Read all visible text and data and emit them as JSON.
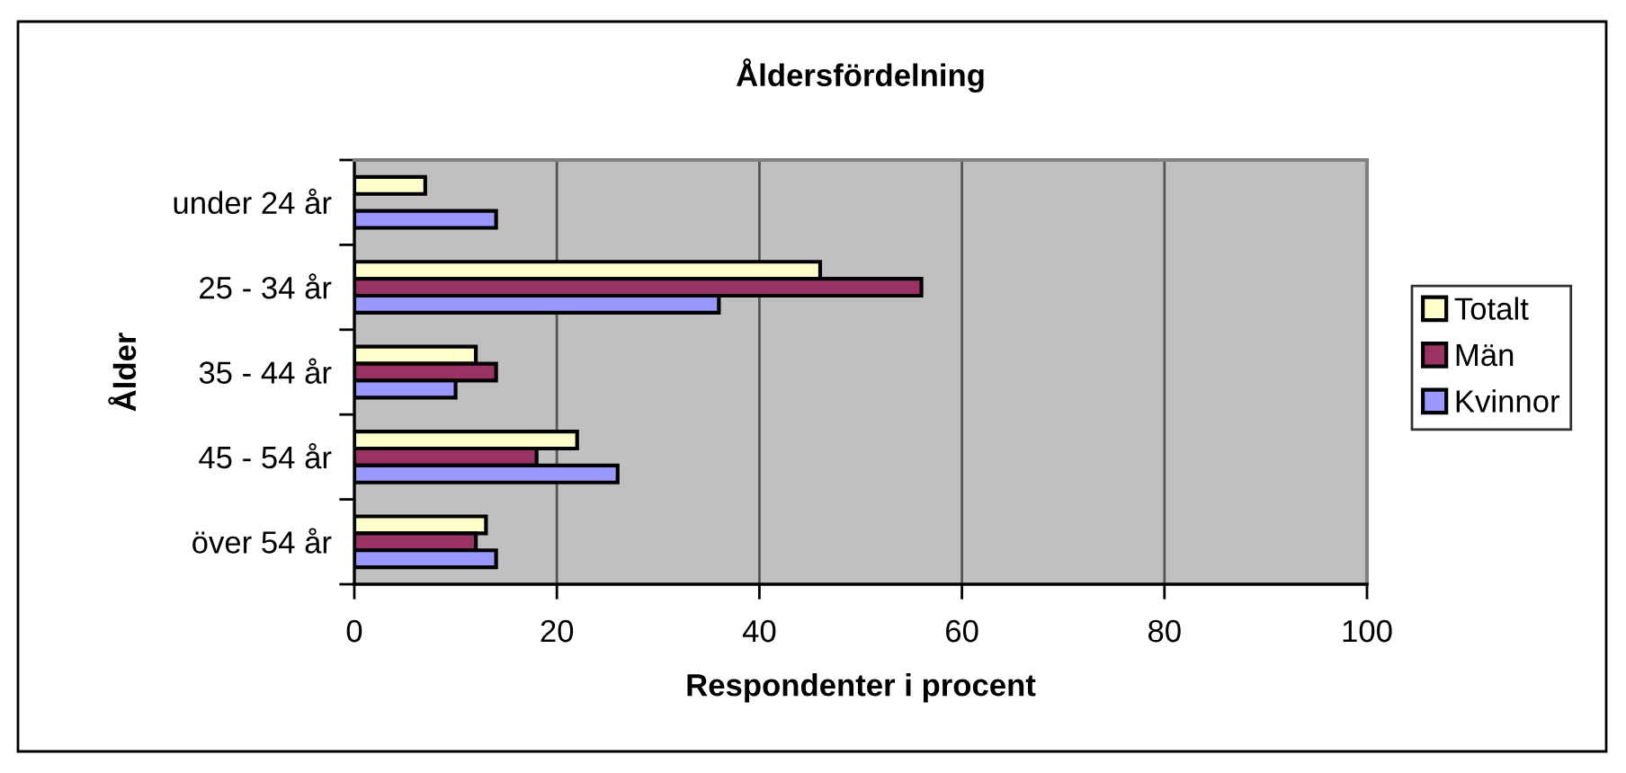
{
  "chart_data": {
    "type": "bar",
    "orientation": "horizontal",
    "title": "Åldersfördelning",
    "xlabel": "Respondenter i procent",
    "ylabel": "Ålder",
    "categories": [
      "under 24 år",
      "25 - 34 år",
      "35 - 44 år",
      "45 - 54 år",
      "över 54 år"
    ],
    "series": [
      {
        "name": "Totalt",
        "color": "#ffffcc",
        "values": [
          7,
          46,
          12,
          22,
          13
        ]
      },
      {
        "name": "Män",
        "color": "#993366",
        "values": [
          null,
          56,
          14,
          18,
          12
        ]
      },
      {
        "name": "Kvinnor",
        "color": "#9999ff",
        "values": [
          14,
          36,
          10,
          26,
          14
        ]
      }
    ],
    "xlim": [
      0,
      100
    ],
    "xticks": [
      0,
      20,
      40,
      60,
      80,
      100
    ],
    "grid": "x",
    "legend": "right"
  }
}
